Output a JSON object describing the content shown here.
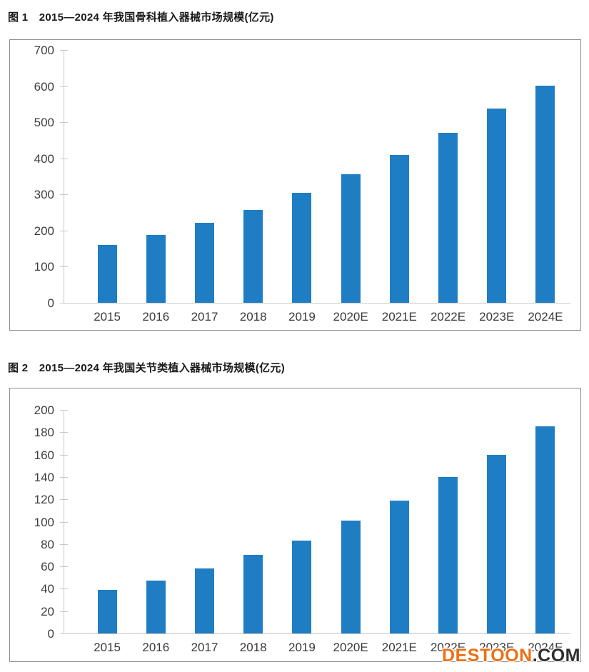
{
  "watermark": {
    "brand": "DESTOON",
    "suffix": ".COM",
    "brand_color": "#ED7014",
    "suffix_color": "#2E2E2E"
  },
  "colors": {
    "bar": "#1F7DC4",
    "axis_line": "#C9C9C9",
    "frame_border": "#8F8F8F",
    "tick_label": "#3D3D3D",
    "caption_text": "#1A1A1A"
  },
  "chart_data": [
    {
      "type": "bar",
      "title": "图 1　2015—2024 年我国骨科植入器械市场规模(亿元)",
      "categories": [
        "2015",
        "2016",
        "2017",
        "2018",
        "2019",
        "2020E",
        "2021E",
        "2022E",
        "2023E",
        "2024E"
      ],
      "values": [
        160,
        188,
        222,
        257,
        304,
        355,
        410,
        471,
        537,
        601
      ],
      "xlabel": "",
      "ylabel": "",
      "unit": "亿元",
      "ylim": [
        0,
        700
      ],
      "ytick_step": 100,
      "grid": false,
      "legend": "none",
      "bar_color": "#1F7DC4"
    },
    {
      "type": "bar",
      "title": "图 2　2015—2024 年我国关节类植入器械市场规模(亿元)",
      "categories": [
        "2015",
        "2016",
        "2017",
        "2018",
        "2019",
        "2020E",
        "2021E",
        "2022E",
        "2023E",
        "2024E"
      ],
      "values": [
        39,
        47,
        58,
        70,
        83,
        101,
        119,
        140,
        160,
        185
      ],
      "xlabel": "",
      "ylabel": "",
      "unit": "亿元",
      "ylim": [
        0,
        200
      ],
      "ytick_step": 20,
      "grid": false,
      "legend": "none",
      "bar_color": "#1F7DC4"
    }
  ]
}
